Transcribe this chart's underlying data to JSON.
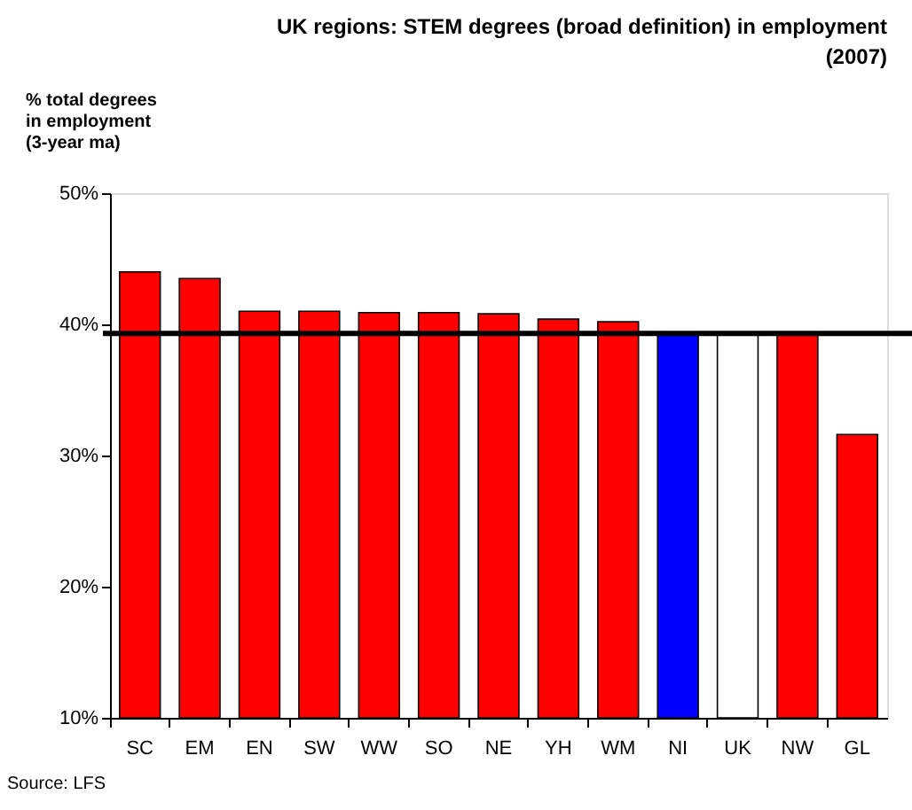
{
  "chart_data": {
    "type": "bar",
    "title": "UK regions: STEM degrees (broad definition) in employment (2007)",
    "ylabel": "% total degrees in employment (3-year ma)",
    "categories": [
      "SC",
      "EM",
      "EN",
      "SW",
      "WW",
      "SO",
      "NE",
      "YH",
      "WM",
      "NI",
      "UK",
      "NW",
      "GL"
    ],
    "values": [
      44.0,
      43.5,
      41.0,
      41.0,
      40.9,
      40.9,
      40.8,
      40.4,
      40.2,
      39.4,
      39.3,
      39.2,
      31.6
    ],
    "colors": [
      "#ff0000",
      "#ff0000",
      "#ff0000",
      "#ff0000",
      "#ff0000",
      "#ff0000",
      "#ff0000",
      "#ff0000",
      "#ff0000",
      "#0000ff",
      "#ffffff",
      "#ff0000",
      "#ff0000"
    ],
    "ylim": [
      10,
      50
    ],
    "yticks": [
      {
        "value": 10,
        "label": "10%"
      },
      {
        "value": 20,
        "label": "20%"
      },
      {
        "value": 30,
        "label": "30%"
      },
      {
        "value": 40,
        "label": "40%"
      },
      {
        "value": 50,
        "label": "50%"
      }
    ],
    "ref_lines": [
      {
        "axis": "y",
        "value": 39.3,
        "color": "#000000"
      }
    ],
    "annotations": [
      "Source: LFS"
    ],
    "grid": false
  }
}
